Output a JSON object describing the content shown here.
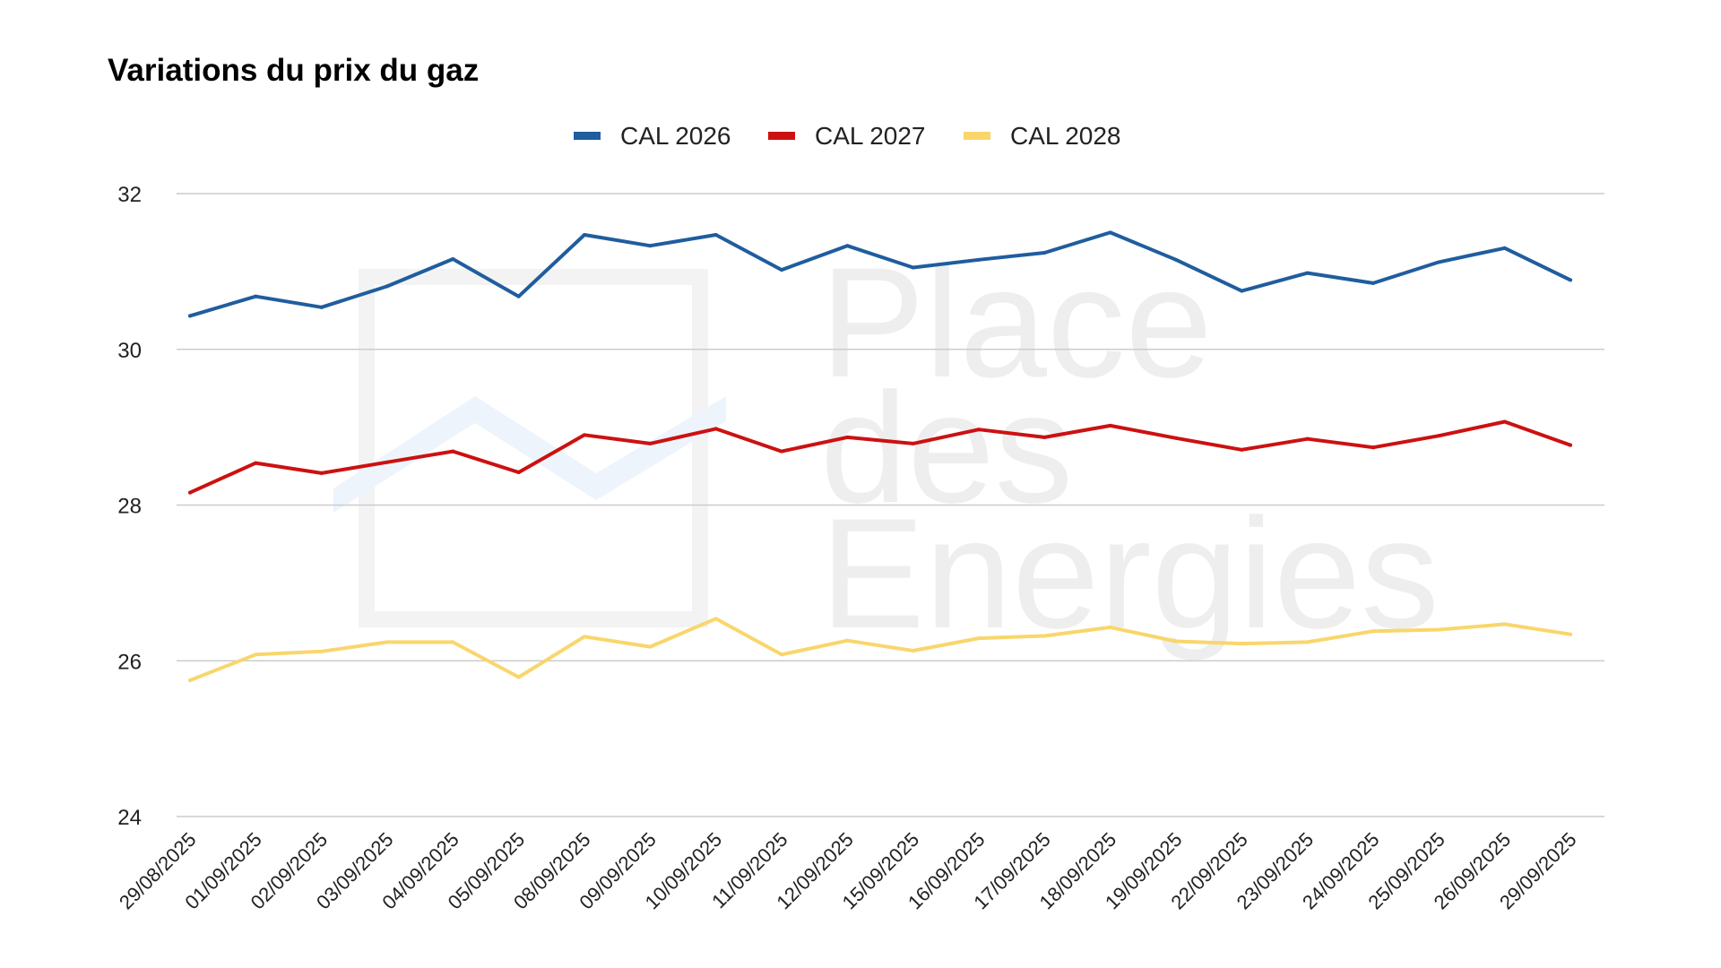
{
  "chart_data": {
    "type": "line",
    "title": "Variations du prix du gaz",
    "xlabel": "",
    "ylabel": "",
    "ylim": [
      24,
      32
    ],
    "yticks": [
      24,
      26,
      28,
      30,
      32
    ],
    "grid": true,
    "legend_position": "top-center",
    "categories": [
      "29/08/2025",
      "01/09/2025",
      "02/09/2025",
      "03/09/2025",
      "04/09/2025",
      "05/09/2025",
      "08/09/2025",
      "09/09/2025",
      "10/09/2025",
      "11/09/2025",
      "12/09/2025",
      "15/09/2025",
      "16/09/2025",
      "17/09/2025",
      "18/09/2025",
      "19/09/2025",
      "22/09/2025",
      "23/09/2025",
      "24/09/2025",
      "25/09/2025",
      "26/09/2025",
      "29/09/2025"
    ],
    "series": [
      {
        "name": "CAL 2026",
        "color": "#1f5d9e",
        "values": [
          30.43,
          30.68,
          30.54,
          30.81,
          31.16,
          30.68,
          31.47,
          31.33,
          31.47,
          31.02,
          31.33,
          31.05,
          31.15,
          31.24,
          31.5,
          31.15,
          30.75,
          30.98,
          30.85,
          31.12,
          31.3,
          30.89
        ]
      },
      {
        "name": "CAL 2027",
        "color": "#cc1111",
        "values": [
          28.16,
          28.54,
          28.41,
          28.55,
          28.69,
          28.42,
          28.9,
          28.79,
          28.98,
          28.69,
          28.87,
          28.79,
          28.97,
          28.87,
          29.02,
          28.86,
          28.71,
          28.85,
          28.74,
          28.89,
          29.07,
          28.77
        ]
      },
      {
        "name": "CAL 2028",
        "color": "#f9d66c",
        "values": [
          25.75,
          26.08,
          26.12,
          26.24,
          26.24,
          25.79,
          26.31,
          26.18,
          26.54,
          26.08,
          26.26,
          26.13,
          26.29,
          26.32,
          26.43,
          26.25,
          26.22,
          26.24,
          26.38,
          26.4,
          26.47,
          26.34
        ]
      }
    ]
  },
  "watermark": {
    "lines": [
      "Place",
      "des",
      "Energies"
    ],
    "color": "#eeeeee"
  }
}
